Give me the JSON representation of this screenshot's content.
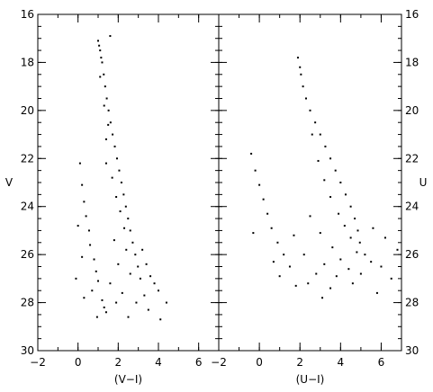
{
  "chart_data": [
    {
      "type": "scatter",
      "title": "",
      "xlabel": "(V−I)",
      "ylabel": "V",
      "xlim": [
        -2,
        7
      ],
      "ylim": [
        30,
        16
      ],
      "y_inverted": true,
      "x_ticks": [
        "−2",
        "0",
        "2",
        "4",
        "6"
      ],
      "y_ticks": [
        "16",
        "18",
        "20",
        "22",
        "24",
        "26",
        "28",
        "30"
      ],
      "y_tick_side": "left",
      "ylabel_side": "left",
      "series": [
        {
          "points": [
            [
              1.0,
              17.1
            ],
            [
              1.05,
              17.3
            ],
            [
              1.1,
              17.5
            ],
            [
              1.15,
              17.8
            ],
            [
              1.2,
              18.0
            ],
            [
              1.28,
              18.5
            ],
            [
              1.35,
              19.0
            ],
            [
              1.43,
              19.5
            ],
            [
              1.52,
              20.0
            ],
            [
              1.62,
              20.5
            ],
            [
              1.72,
              21.0
            ],
            [
              1.83,
              21.5
            ],
            [
              1.94,
              22.0
            ],
            [
              2.05,
              22.5
            ],
            [
              2.16,
              23.0
            ],
            [
              2.27,
              23.5
            ],
            [
              2.38,
              24.0
            ],
            [
              2.49,
              24.5
            ],
            [
              2.6,
              25.0
            ],
            [
              2.72,
              25.5
            ],
            [
              2.85,
              26.0
            ],
            [
              2.98,
              26.5
            ],
            [
              3.1,
              27.0
            ],
            [
              1.1,
              18.6
            ],
            [
              1.3,
              19.8
            ],
            [
              1.5,
              20.6
            ],
            [
              1.4,
              21.2
            ],
            [
              1.4,
              22.2
            ],
            [
              1.7,
              22.8
            ],
            [
              1.9,
              23.6
            ],
            [
              2.1,
              24.2
            ],
            [
              2.3,
              24.9
            ],
            [
              1.8,
              25.4
            ],
            [
              2.4,
              25.8
            ],
            [
              2.0,
              26.4
            ],
            [
              2.6,
              26.8
            ],
            [
              1.6,
              27.2
            ],
            [
              2.2,
              27.6
            ],
            [
              1.9,
              28.0
            ],
            [
              1.4,
              28.4
            ],
            [
              2.5,
              28.6
            ],
            [
              0.1,
              22.2
            ],
            [
              0.2,
              23.1
            ],
            [
              0.3,
              23.8
            ],
            [
              0.4,
              24.4
            ],
            [
              0.55,
              25.0
            ],
            [
              0.6,
              25.6
            ],
            [
              0.8,
              26.2
            ],
            [
              0.9,
              26.7
            ],
            [
              1.0,
              27.1
            ],
            [
              0.7,
              27.5
            ],
            [
              1.2,
              27.9
            ],
            [
              1.3,
              28.2
            ],
            [
              0.95,
              28.6
            ],
            [
              3.2,
              25.8
            ],
            [
              3.4,
              26.4
            ],
            [
              3.6,
              26.9
            ],
            [
              3.8,
              27.2
            ],
            [
              4.0,
              27.5
            ],
            [
              3.3,
              27.7
            ],
            [
              2.9,
              28.0
            ],
            [
              4.4,
              28.0
            ],
            [
              3.5,
              28.3
            ],
            [
              4.1,
              28.7
            ],
            [
              0.0,
              24.8
            ],
            [
              0.2,
              26.1
            ],
            [
              -0.1,
              27.0
            ],
            [
              0.3,
              27.8
            ],
            [
              1.6,
              16.9
            ]
          ]
        }
      ]
    },
    {
      "type": "scatter",
      "title": "",
      "xlabel": "(U−I)",
      "ylabel": "U",
      "xlim": [
        -2,
        7
      ],
      "ylim": [
        30,
        16
      ],
      "y_inverted": true,
      "x_ticks": [
        "−2",
        "0",
        "2",
        "4",
        "6"
      ],
      "y_ticks": [
        "16",
        "18",
        "20",
        "22",
        "24",
        "26",
        "28",
        "30"
      ],
      "y_tick_side": "right",
      "ylabel_side": "right",
      "series": [
        {
          "points": [
            [
              2.05,
              18.5
            ],
            [
              2.15,
              19.0
            ],
            [
              2.3,
              19.5
            ],
            [
              2.5,
              20.0
            ],
            [
              2.75,
              20.5
            ],
            [
              3.0,
              21.0
            ],
            [
              3.25,
              21.5
            ],
            [
              3.5,
              22.0
            ],
            [
              3.75,
              22.5
            ],
            [
              4.0,
              23.0
            ],
            [
              4.25,
              23.5
            ],
            [
              4.5,
              24.0
            ],
            [
              4.7,
              24.5
            ],
            [
              4.85,
              25.0
            ],
            [
              4.95,
              25.5
            ],
            [
              2.0,
              18.2
            ],
            [
              1.9,
              17.8
            ],
            [
              2.6,
              21.0
            ],
            [
              2.9,
              22.1
            ],
            [
              3.2,
              22.9
            ],
            [
              3.5,
              23.6
            ],
            [
              3.9,
              24.3
            ],
            [
              4.2,
              24.8
            ],
            [
              4.5,
              25.3
            ],
            [
              3.6,
              25.7
            ],
            [
              4.8,
              25.9
            ],
            [
              4.0,
              26.2
            ],
            [
              5.2,
              26.0
            ],
            [
              3.2,
              26.4
            ],
            [
              4.4,
              26.6
            ],
            [
              5.5,
              26.3
            ],
            [
              2.8,
              26.8
            ],
            [
              3.8,
              26.9
            ],
            [
              5.0,
              26.8
            ],
            [
              6.0,
              26.5
            ],
            [
              6.5,
              27.0
            ],
            [
              2.4,
              27.2
            ],
            [
              3.5,
              27.4
            ],
            [
              4.6,
              27.2
            ],
            [
              1.8,
              27.3
            ],
            [
              3.1,
              27.8
            ],
            [
              5.8,
              27.6
            ],
            [
              -0.4,
              21.8
            ],
            [
              -0.2,
              22.5
            ],
            [
              0.0,
              23.1
            ],
            [
              0.2,
              23.7
            ],
            [
              0.4,
              24.3
            ],
            [
              0.6,
              24.9
            ],
            [
              0.9,
              25.5
            ],
            [
              1.2,
              26.0
            ],
            [
              1.5,
              26.5
            ],
            [
              0.7,
              26.3
            ],
            [
              1.0,
              26.9
            ],
            [
              -0.3,
              25.1
            ],
            [
              2.2,
              26.0
            ],
            [
              1.7,
              25.2
            ],
            [
              2.5,
              24.4
            ],
            [
              3.0,
              25.1
            ],
            [
              6.2,
              25.3
            ],
            [
              6.8,
              25.8
            ],
            [
              5.6,
              24.9
            ]
          ]
        }
      ]
    }
  ]
}
